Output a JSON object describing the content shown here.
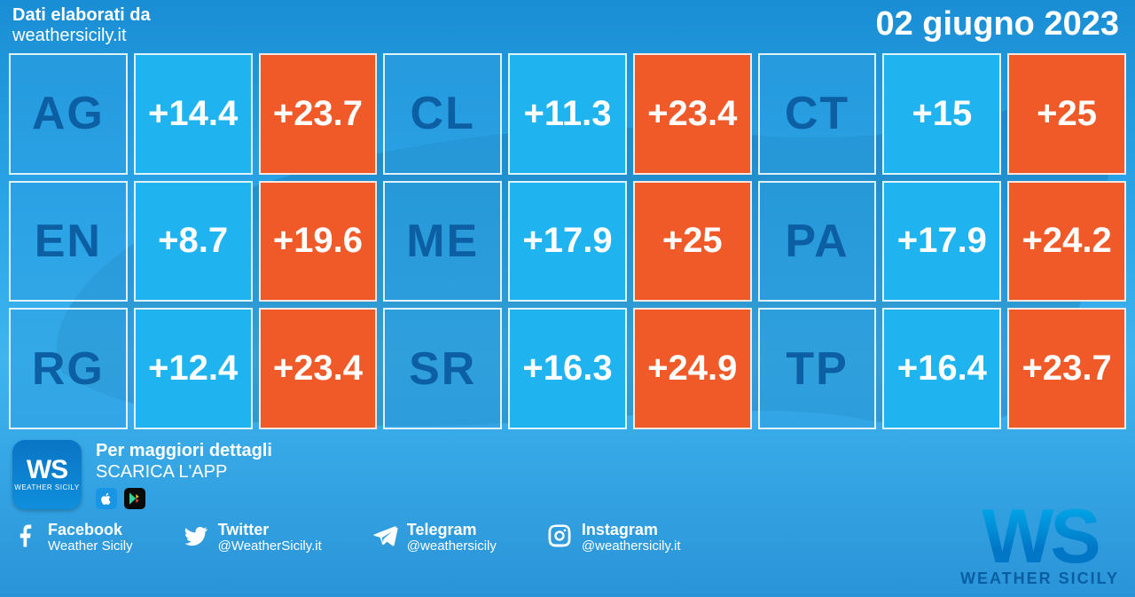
{
  "header": {
    "line1": "Dati elaborati da",
    "site": "weathersicily.it",
    "date": "02 giugno 2023"
  },
  "colors": {
    "low_bg": "#1fb4ef",
    "high_bg": "#f05a28",
    "label_text": "#0d5fa3",
    "cell_border": "#ffffff",
    "background_top": "#1a8ed4",
    "background_bottom": "#2a94d8"
  },
  "grid": {
    "type": "table",
    "columns_per_city": [
      "code",
      "min_temp_c",
      "max_temp_c"
    ],
    "font_size_label": 52,
    "font_size_value": 40,
    "cities": [
      {
        "code": "AG",
        "low": "+14.4",
        "high": "+23.7"
      },
      {
        "code": "CL",
        "low": "+11.3",
        "high": "+23.4"
      },
      {
        "code": "CT",
        "low": "+15",
        "high": "+25"
      },
      {
        "code": "EN",
        "low": "+8.7",
        "high": "+19.6"
      },
      {
        "code": "ME",
        "low": "+17.9",
        "high": "+25"
      },
      {
        "code": "PA",
        "low": "+17.9",
        "high": "+24.2"
      },
      {
        "code": "RG",
        "low": "+12.4",
        "high": "+23.4"
      },
      {
        "code": "SR",
        "low": "+16.3",
        "high": "+24.9"
      },
      {
        "code": "TP",
        "low": "+16.4",
        "high": "+23.7"
      }
    ]
  },
  "footer": {
    "promo_line1": "Per maggiori dettagli",
    "promo_line2": "SCARICA L'APP",
    "ws_badge_text": "WS",
    "ws_badge_sub": "WEATHER SICILY",
    "socials": [
      {
        "icon": "facebook-icon",
        "name": "Facebook",
        "handle": "Weather Sicily"
      },
      {
        "icon": "twitter-icon",
        "name": "Twitter",
        "handle": "@WeatherSicily.it"
      },
      {
        "icon": "telegram-icon",
        "name": "Telegram",
        "handle": "@weathersicily"
      },
      {
        "icon": "instagram-icon",
        "name": "Instagram",
        "handle": "@weathersicily.it"
      }
    ],
    "logo_text": "WS",
    "logo_sub": "WEATHER SICILY"
  }
}
